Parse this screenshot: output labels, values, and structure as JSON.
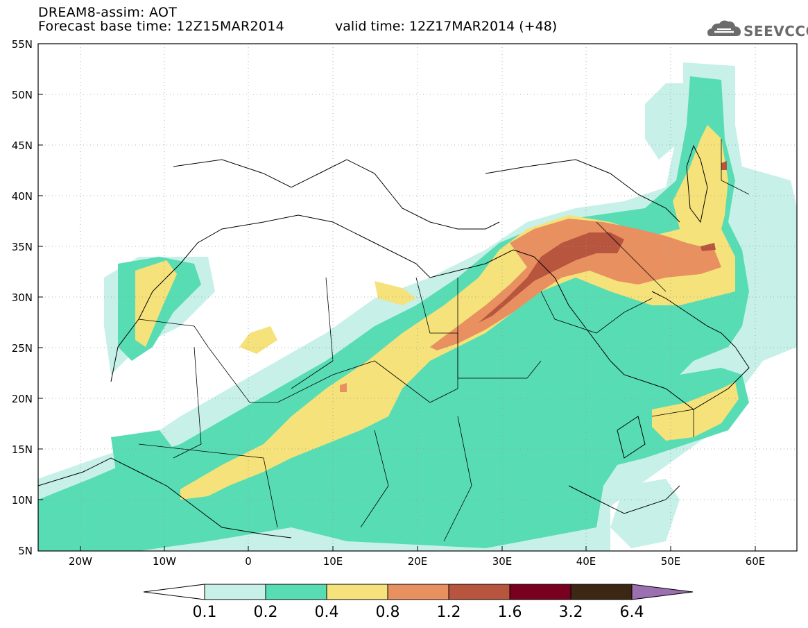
{
  "header": {
    "model_line": "DREAM8-assim: AOT",
    "base_line": "Forecast base time: 12Z15MAR2014",
    "valid_line": "valid time: 12Z17MAR2014 (+48)",
    "logo_text": "SEEVCCC",
    "logo_icon": "cloud-icon"
  },
  "map": {
    "lon_range": [
      -25,
      65
    ],
    "lat_range": [
      5,
      55
    ],
    "lat_labels": [
      "55N",
      "50N",
      "45N",
      "40N",
      "35N",
      "30N",
      "25N",
      "20N",
      "15N",
      "10N",
      "5N"
    ],
    "lon_labels": [
      "20W",
      "10W",
      "0",
      "10E",
      "20E",
      "30E",
      "40E",
      "50E",
      "60E"
    ],
    "grid": "dotted"
  },
  "colorbar": {
    "labels": [
      "0.1",
      "0.2",
      "0.4",
      "0.8",
      "1.2",
      "1.6",
      "3.2",
      "6.4"
    ],
    "colors": [
      "#ffffff",
      "#c6f0e8",
      "#58dcb4",
      "#f5e27a",
      "#e89060",
      "#b8553e",
      "#7a0020",
      "#3b2714",
      "#9a70b0"
    ]
  }
}
